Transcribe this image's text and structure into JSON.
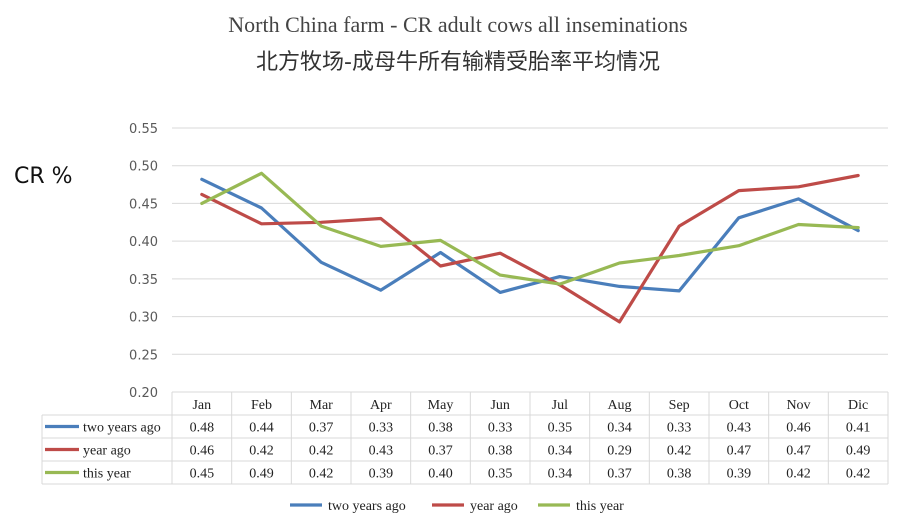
{
  "chart_data": {
    "type": "line",
    "title": "North China farm - CR adult cows all inseminations",
    "subtitle": "北方牧场-成母牛所有输精受胎率平均情况",
    "ylabel": "CR %",
    "xlabel": "",
    "ylim": [
      0.2,
      0.55
    ],
    "yticks": [
      "0.55",
      "0.50",
      "0.45",
      "0.40",
      "0.35",
      "0.30",
      "0.25",
      "0.20"
    ],
    "categories": [
      "Jan",
      "Feb",
      "Mar",
      "Apr",
      "May",
      "Jun",
      "Jul",
      "Aug",
      "Sep",
      "Oct",
      "Nov",
      "Dic"
    ],
    "grid": true,
    "legend_position": "bottom",
    "series": [
      {
        "name": "two years ago",
        "color": "#4a7ebb",
        "values": [
          0.482,
          0.444,
          0.372,
          0.335,
          0.385,
          0.332,
          0.353,
          0.34,
          0.334,
          0.431,
          0.456,
          0.414
        ],
        "labels": [
          "0.48",
          "0.44",
          "0.37",
          "0.33",
          "0.38",
          "0.33",
          "0.35",
          "0.34",
          "0.33",
          "0.43",
          "0.46",
          "0.41"
        ]
      },
      {
        "name": "year ago",
        "color": "#be4b48",
        "values": [
          0.462,
          0.423,
          0.425,
          0.43,
          0.367,
          0.384,
          0.342,
          0.293,
          0.42,
          0.467,
          0.472,
          0.487
        ],
        "labels": [
          "0.46",
          "0.42",
          "0.42",
          "0.43",
          "0.37",
          "0.38",
          "0.34",
          "0.29",
          "0.42",
          "0.47",
          "0.47",
          "0.49"
        ]
      },
      {
        "name": "this year",
        "color": "#98b954",
        "values": [
          0.45,
          0.49,
          0.42,
          0.393,
          0.401,
          0.355,
          0.343,
          0.371,
          0.381,
          0.394,
          0.422,
          0.418
        ],
        "labels": [
          "0.45",
          "0.49",
          "0.42",
          "0.39",
          "0.40",
          "0.35",
          "0.34",
          "0.37",
          "0.38",
          "0.39",
          "0.42",
          "0.42"
        ]
      }
    ]
  }
}
